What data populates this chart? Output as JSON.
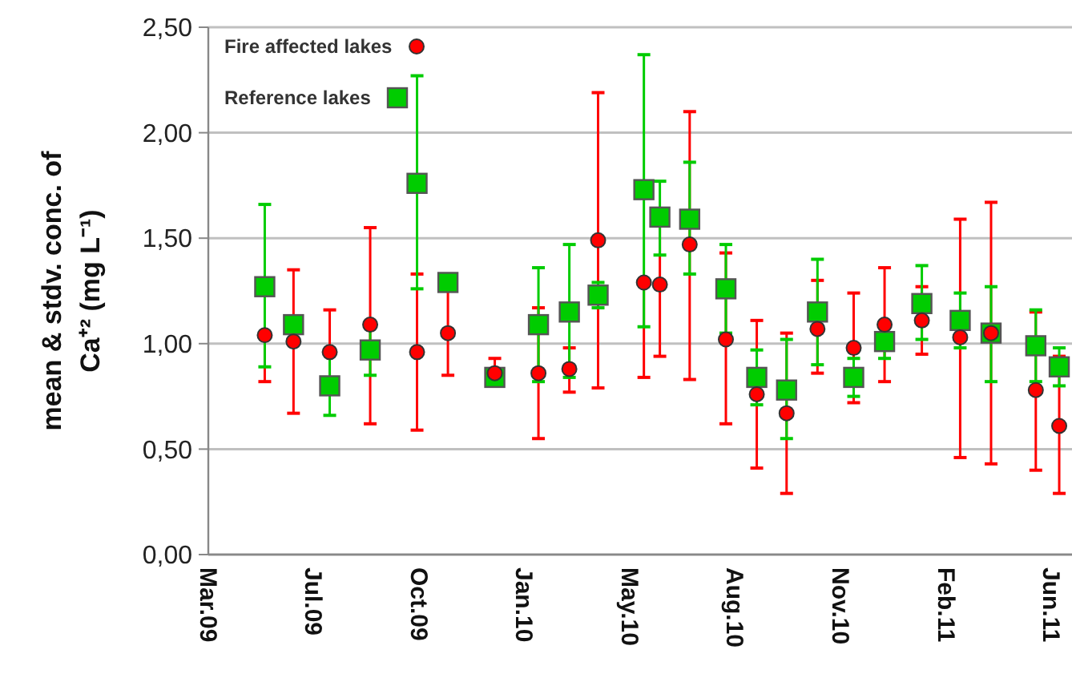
{
  "chart_data": {
    "type": "scatter",
    "ylabel": "mean & stdv. conc. of Ca⁺²  (mg L⁻¹)",
    "x": [
      "2009-05-23",
      "2009-06-19",
      "2009-07-23",
      "2009-08-30",
      "2009-10-13",
      "2009-11-11",
      "2009-12-25",
      "2010-02-04",
      "2010-03-05",
      "2010-04-01",
      "2010-05-14",
      "2010-05-29",
      "2010-06-26",
      "2010-07-30",
      "2010-08-28",
      "2010-09-25",
      "2010-10-24",
      "2010-11-27",
      "2010-12-26",
      "2011-01-30",
      "2011-03-07",
      "2011-04-05",
      "2011-05-17",
      "2011-06-08"
    ],
    "series": [
      {
        "name": "Fire affected lakes",
        "color": "#ff0000",
        "marker": "circle",
        "values": [
          1.04,
          1.01,
          0.96,
          1.09,
          0.96,
          1.05,
          0.86,
          0.86,
          0.88,
          1.49,
          1.29,
          1.28,
          1.47,
          1.02,
          0.76,
          0.67,
          1.07,
          0.98,
          1.09,
          1.11,
          1.03,
          1.05,
          0.78,
          0.61
        ],
        "errors": [
          [
            0.82,
            1.04
          ],
          [
            0.67,
            1.35
          ],
          [
            0.77,
            1.16
          ],
          [
            0.62,
            1.55
          ],
          [
            0.59,
            1.33
          ],
          [
            0.85,
            1.25
          ],
          [
            0.8,
            0.93
          ],
          [
            0.55,
            1.17
          ],
          [
            0.77,
            0.98
          ],
          [
            0.79,
            2.19
          ],
          [
            0.84,
            1.29
          ],
          [
            0.94,
            1.62
          ],
          [
            0.83,
            2.1
          ],
          [
            0.62,
            1.43
          ],
          [
            0.41,
            1.11
          ],
          [
            0.29,
            1.05
          ],
          [
            0.86,
            1.3
          ],
          [
            0.72,
            1.24
          ],
          [
            0.82,
            1.36
          ],
          [
            0.95,
            1.27
          ],
          [
            0.46,
            1.59
          ],
          [
            0.43,
            1.67
          ],
          [
            0.4,
            1.15
          ],
          [
            0.29,
            0.94
          ]
        ]
      },
      {
        "name": "Reference lakes",
        "color": "#00cc00",
        "marker": "square",
        "values": [
          1.27,
          1.09,
          0.8,
          0.97,
          1.76,
          1.29,
          0.84,
          1.09,
          1.15,
          1.23,
          1.73,
          1.6,
          1.59,
          1.26,
          0.84,
          0.78,
          1.15,
          0.84,
          1.01,
          1.19,
          1.11,
          1.05,
          0.99,
          0.89
        ],
        "errors": [
          [
            0.89,
            1.66
          ],
          null,
          [
            0.66,
            0.96
          ],
          [
            0.85,
            1.1
          ],
          [
            1.26,
            2.27
          ],
          null,
          null,
          [
            0.82,
            1.36
          ],
          [
            0.84,
            1.47
          ],
          [
            1.17,
            1.29
          ],
          [
            1.08,
            2.37
          ],
          [
            1.42,
            1.77
          ],
          [
            1.33,
            1.86
          ],
          [
            1.05,
            1.47
          ],
          [
            0.71,
            0.97
          ],
          [
            0.55,
            1.02
          ],
          [
            0.9,
            1.4
          ],
          [
            0.75,
            0.93
          ],
          [
            0.93,
            1.09
          ],
          [
            1.02,
            1.37
          ],
          [
            0.98,
            1.24
          ],
          [
            0.82,
            1.27
          ],
          [
            0.82,
            1.16
          ],
          [
            0.8,
            0.98
          ]
        ]
      }
    ],
    "xlim": [
      "2009-03-31",
      "2011-06-20"
    ],
    "xticks": [
      {
        "value": "2009-03-31",
        "label": "Mar.09"
      },
      {
        "value": "2009-07-08",
        "label": "Jul.09"
      },
      {
        "value": "2009-10-15",
        "label": "Oct.09"
      },
      {
        "value": "2010-01-22",
        "label": "Jan.10"
      },
      {
        "value": "2010-05-01",
        "label": "May.10"
      },
      {
        "value": "2010-08-08",
        "label": "Aug.10"
      },
      {
        "value": "2010-11-15",
        "label": "Nov.10"
      },
      {
        "value": "2011-02-22",
        "label": "Feb.11"
      },
      {
        "value": "2011-06-01",
        "label": "Jun.11"
      }
    ],
    "ylim": [
      0,
      2.5
    ],
    "yticks": [
      {
        "value": 0,
        "label": "0,00"
      },
      {
        "value": 0.5,
        "label": "0,50"
      },
      {
        "value": 1,
        "label": "1,00"
      },
      {
        "value": 1.5,
        "label": "1,50"
      },
      {
        "value": 2,
        "label": "2,00"
      },
      {
        "value": 2.5,
        "label": "2,50"
      }
    ],
    "grid": "y",
    "legend": "top left"
  }
}
